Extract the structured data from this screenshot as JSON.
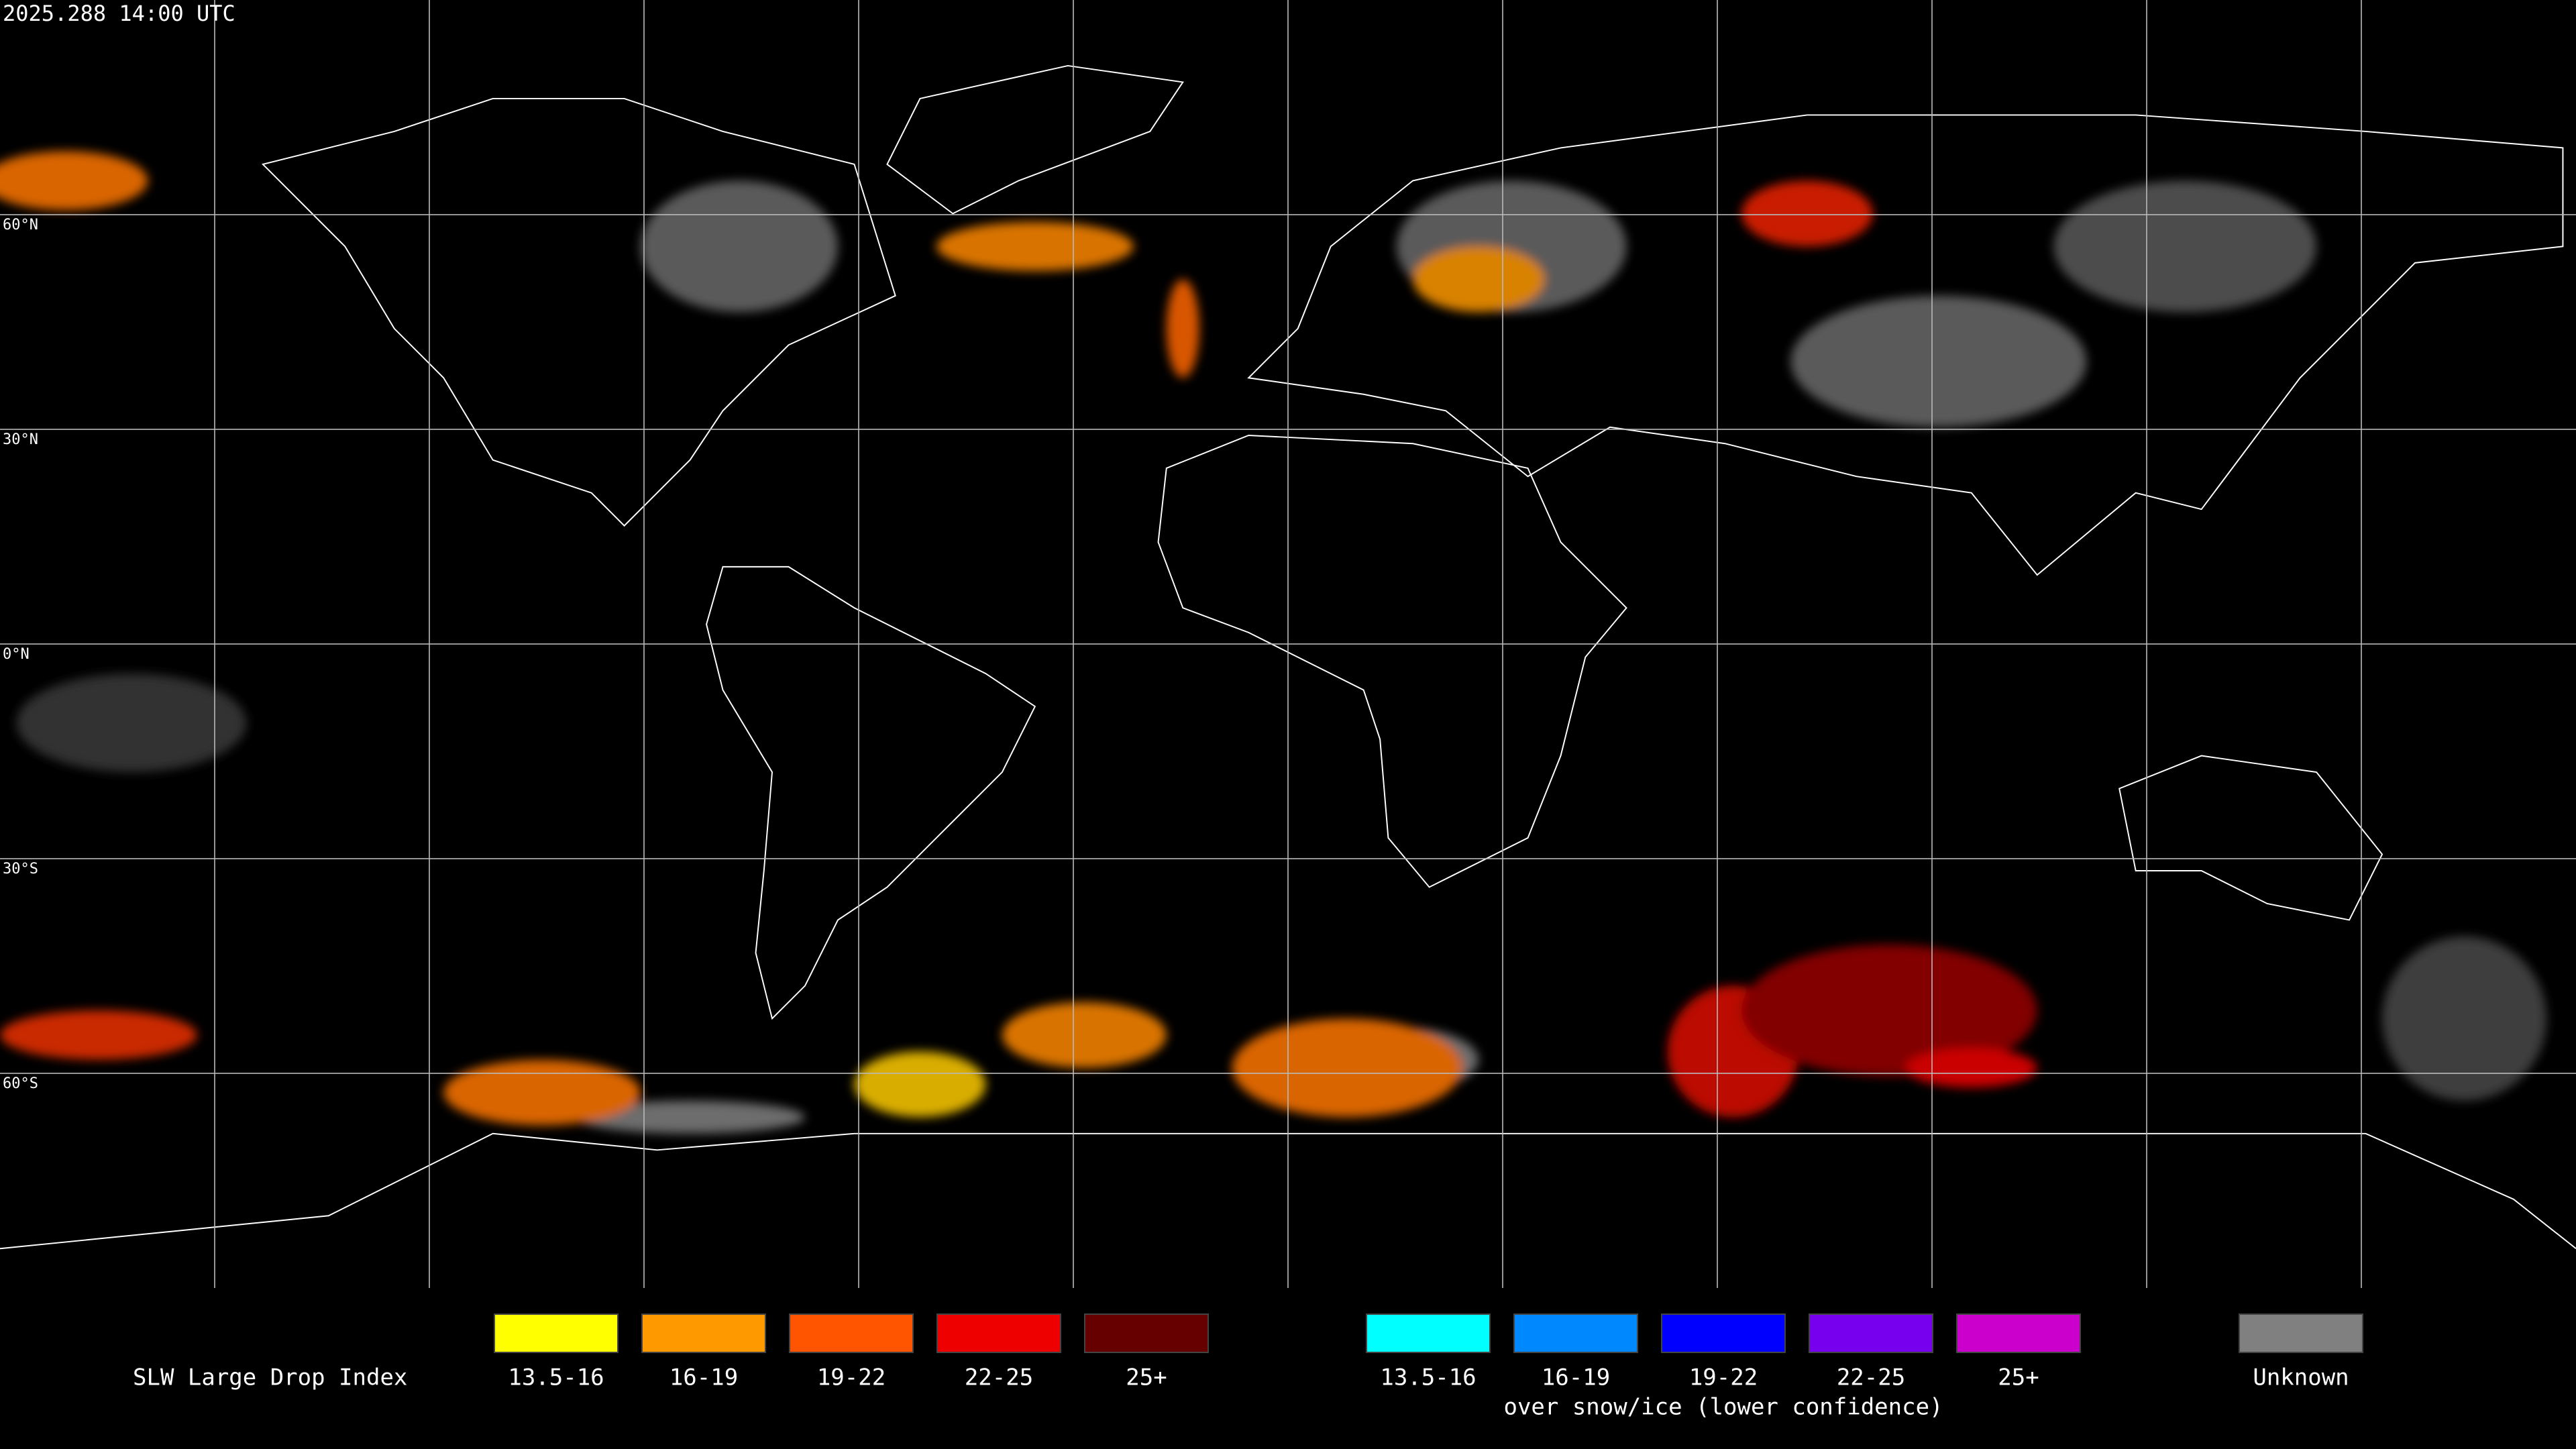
{
  "header": {
    "timestamp": "2025.288 14:00 UTC"
  },
  "map": {
    "grid_labels": [
      "60°N",
      "30°N",
      "0°N",
      "30°S",
      "60°S"
    ]
  },
  "legend": {
    "title": "SLW Large Drop Index",
    "groups": [
      {
        "items": [
          {
            "label": "13.5-16",
            "color": "#ffff00"
          },
          {
            "label": "16-19",
            "color": "#ff9900"
          },
          {
            "label": "19-22",
            "color": "#ff5500"
          },
          {
            "label": "22-25",
            "color": "#ee0000"
          },
          {
            "label": "25+",
            "color": "#660000"
          }
        ]
      },
      {
        "items": [
          {
            "label": "13.5-16",
            "color": "#00ffff"
          },
          {
            "label": "16-19",
            "color": "#0088ff"
          },
          {
            "label": "19-22",
            "color": "#0000ff"
          },
          {
            "label": "22-25",
            "color": "#7700ee"
          },
          {
            "label": "25+",
            "color": "#cc00cc"
          }
        ],
        "caption": "over snow/ice (lower confidence)"
      },
      {
        "items": [
          {
            "label": "Unknown",
            "color": "#808080"
          }
        ]
      }
    ]
  }
}
